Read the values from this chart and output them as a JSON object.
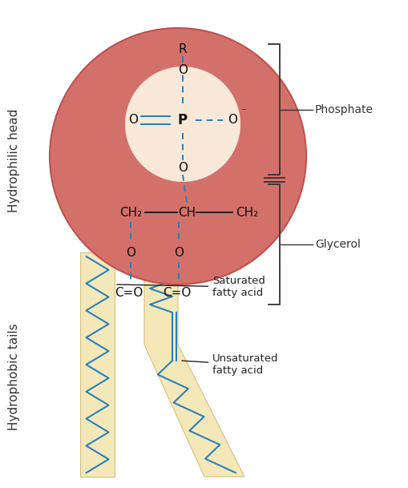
{
  "bg_color": "#ffffff",
  "head_circle_color": "#d4706a",
  "head_circle_edge": "#c05050",
  "phosphate_circle_color": "#f7e8d8",
  "tail_color": "#f5e8b8",
  "tail_edge_color": "#d4c080",
  "bond_color": "#2980b9",
  "text_color": "#111111",
  "label_color": "#333333",
  "side_label_phosphate": "Phosphate",
  "side_label_glycerol": "Glycerol",
  "label_saturated": "Saturated\nfatty acid",
  "label_unsaturated": "Unsaturated\nfatty acid",
  "left_label_head": "Hydrophilic head",
  "left_label_tail": "Hydrophobic tails"
}
